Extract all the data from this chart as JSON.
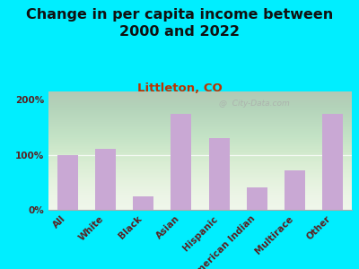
{
  "title": "Change in per capita income between\n2000 and 2022",
  "subtitle": "Littleton, CO",
  "categories": [
    "All",
    "White",
    "Black",
    "Asian",
    "Hispanic",
    "American Indian",
    "Multirace",
    "Other"
  ],
  "values": [
    100,
    110,
    25,
    175,
    130,
    40,
    72,
    175
  ],
  "bar_color": "#c9a8d4",
  "background_outer": "#00eeff",
  "title_color": "#111111",
  "subtitle_color": "#bb3300",
  "tick_label_color": "#5a2020",
  "ylim": [
    0,
    215
  ],
  "yticks": [
    0,
    100,
    200
  ],
  "ytick_labels": [
    "0%",
    "100%",
    "200%"
  ],
  "watermark": "@  City-Data.com",
  "title_fontsize": 11.5,
  "subtitle_fontsize": 9.5,
  "tick_fontsize": 7.5
}
